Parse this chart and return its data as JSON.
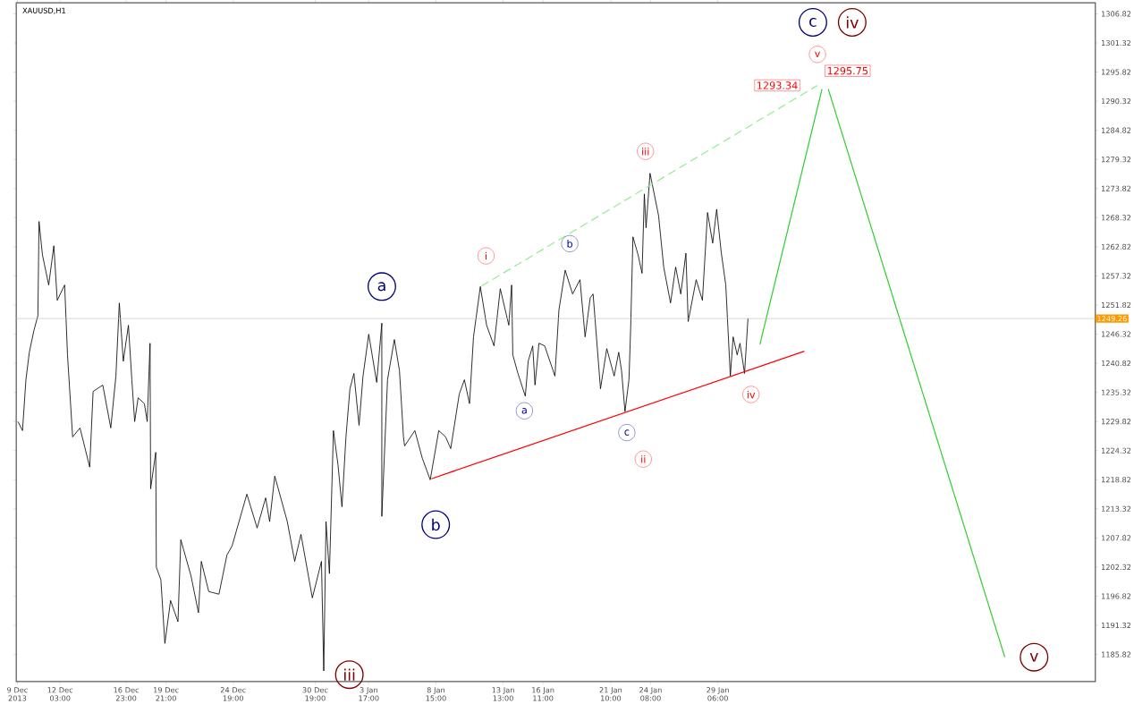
{
  "chart_data": {
    "type": "line",
    "title": "XAUUSD,H1",
    "xlim": [
      "2013-12-08T22:00",
      "2014-02-25T21:00"
    ],
    "ylim": [
      1180.7,
      1308.9
    ],
    "xticks": [
      {
        "value": "2013-12-09T00:00",
        "label": "9 Dec 2013"
      },
      {
        "value": "2013-12-12T03:00",
        "label": "12 Dec 03:00"
      },
      {
        "value": "2013-12-16T23:00",
        "label": "16 Dec 23:00"
      },
      {
        "value": "2013-12-19T21:00",
        "label": "19 Dec 21:00"
      },
      {
        "value": "2013-12-24T19:00",
        "label": "24 Dec 19:00"
      },
      {
        "value": "2013-12-30T19:00",
        "label": "30 Dec 19:00"
      },
      {
        "value": "2014-01-03T17:00",
        "label": "3 Jan 17:00"
      },
      {
        "value": "2014-01-08T15:00",
        "label": "8 Jan 15:00"
      },
      {
        "value": "2014-01-13T13:00",
        "label": "13 Jan 13:00"
      },
      {
        "value": "2014-01-16T11:00",
        "label": "16 Jan 11:00"
      },
      {
        "value": "2014-01-21T10:00",
        "label": "21 Jan 10:00"
      },
      {
        "value": "2014-01-24T08:00",
        "label": "24 Jan 08:00"
      },
      {
        "value": "2014-01-29T06:00",
        "label": "29 Jan 06:00"
      }
    ],
    "yticks": [
      1185.82,
      1191.32,
      1196.82,
      1202.32,
      1207.82,
      1213.32,
      1218.82,
      1224.32,
      1229.82,
      1235.32,
      1240.82,
      1246.32,
      1251.82,
      1257.32,
      1262.82,
      1268.32,
      1273.82,
      1279.32,
      1284.82,
      1290.32,
      1295.82,
      1301.32,
      1306.82
    ],
    "series": [
      {
        "color": "#000000",
        "x": [
          "2013-12-09T01:00",
          "2013-12-09T09:00",
          "2013-12-09T15:00",
          "2013-12-09T21:00",
          "2013-12-10T05:00",
          "2013-12-10T12:00",
          "2013-12-10T14:00",
          "2013-12-10T20:00",
          "2013-12-11T07:00",
          "2013-12-11T16:00",
          "2013-12-11T22:00",
          "2013-12-12T11:00",
          "2013-12-12T16:00",
          "2013-12-13T01:00",
          "2013-12-13T14:00",
          "2013-12-14T07:00",
          "2013-12-14T13:00",
          "2013-12-15T06:00",
          "2013-12-15T20:00",
          "2013-12-16T05:00",
          "2013-12-16T11:00",
          "2013-12-16T18:00",
          "2013-12-17T03:00",
          "2013-12-17T09:00",
          "2013-12-17T14:00",
          "2013-12-17T20:00",
          "2013-12-18T07:00",
          "2013-12-18T12:00",
          "2013-12-18T17:00",
          "2013-12-18T18:00",
          "2013-12-19T03:00",
          "2013-12-19T04:00",
          "2013-12-19T12:00",
          "2013-12-19T19:00",
          "2013-12-20T05:00",
          "2013-12-20T18:00",
          "2013-12-20T23:00",
          "2013-12-21T17:00",
          "2013-12-22T06:00",
          "2013-12-22T11:00",
          "2013-12-23T00:00",
          "2013-12-23T18:00",
          "2013-12-24T08:00",
          "2013-12-24T17:00",
          "2013-12-25T19:00",
          "2013-12-26T13:00",
          "2013-12-27T04:00",
          "2013-12-27T11:00",
          "2013-12-27T20:00",
          "2013-12-28T18:00",
          "2013-12-29T07:00",
          "2013-12-29T18:00",
          "2013-12-30T14:00",
          "2013-12-31T06:00",
          "2013-12-31T10:00",
          "2013-12-31T14:00",
          "2013-12-31T20:00",
          "2014-01-01T03:00",
          "2014-01-01T11:00",
          "2014-01-01T18:00",
          "2014-01-02T01:00",
          "2014-01-02T08:00",
          "2014-01-02T15:00",
          "2014-01-03T00:00",
          "2014-01-03T07:00",
          "2014-01-03T17:00",
          "2014-01-04T07:00",
          "2014-01-04T16:00",
          "2014-01-04T16:00",
          "2014-01-05T02:00",
          "2014-01-05T14:00",
          "2014-01-05T23:00",
          "2014-01-06T06:00",
          "2014-01-06T08:00",
          "2014-01-07T02:00",
          "2014-01-07T15:00",
          "2014-01-08T05:00",
          "2014-01-08T20:00",
          "2014-01-09T08:00",
          "2014-01-09T17:00",
          "2014-01-10T08:00",
          "2014-01-10T17:00",
          "2014-01-11T02:00",
          "2014-01-11T09:00",
          "2014-01-11T21:00",
          "2014-01-12T08:00",
          "2014-01-12T21:00",
          "2014-01-13T08:00",
          "2014-01-13T23:00",
          "2014-01-14T04:00",
          "2014-01-14T06:00",
          "2014-01-14T15:00",
          "2014-01-15T04:00",
          "2014-01-15T09:00",
          "2014-01-15T17:00",
          "2014-01-15T21:00",
          "2014-01-16T04:00",
          "2014-01-16T14:00",
          "2014-01-17T08:00",
          "2014-01-17T15:00",
          "2014-01-18T02:00",
          "2014-01-18T15:00",
          "2014-01-19T04:00",
          "2014-01-19T13:00",
          "2014-01-19T22:00",
          "2014-01-20T03:00",
          "2014-01-20T16:00",
          "2014-01-21T03:00",
          "2014-01-21T16:00",
          "2014-01-22T00:00",
          "2014-01-22T05:00",
          "2014-01-22T11:00",
          "2014-01-22T18:00",
          "2014-01-22T21:00",
          "2014-01-23T01:00",
          "2014-01-23T10:00",
          "2014-01-23T17:00",
          "2014-01-23T21:00",
          "2014-01-24T00:00",
          "2014-01-24T07:00",
          "2014-01-24T22:00",
          "2014-01-25T07:00",
          "2014-01-25T19:00",
          "2014-01-26T04:00",
          "2014-01-26T13:00",
          "2014-01-26T22:00",
          "2014-01-27T02:00",
          "2014-01-27T16:00",
          "2014-01-28T03:00",
          "2014-01-28T12:00",
          "2014-01-28T21:00",
          "2014-01-29T04:00",
          "2014-01-29T12:00",
          "2014-01-29T20:00",
          "2014-01-30T04:00",
          "2014-01-30T09:00",
          "2014-01-30T16:00",
          "2014-01-30T21:00",
          "2014-01-31T05:00",
          "2014-01-31T08:00",
          "2014-01-31T11:00"
        ],
        "values": [
          1229.8,
          1228.1,
          1237.7,
          1242.9,
          1247.0,
          1249.8,
          1267.6,
          1261.3,
          1255.6,
          1263.0,
          1252.7,
          1255.6,
          1242.4,
          1226.9,
          1228.6,
          1221.2,
          1235.5,
          1236.7,
          1228.6,
          1238.4,
          1252.2,
          1241.2,
          1248.0,
          1237.7,
          1229.8,
          1234.3,
          1233.2,
          1229.8,
          1244.6,
          1217.1,
          1224.0,
          1202.3,
          1199.9,
          1187.9,
          1196.0,
          1192.0,
          1207.5,
          1200.6,
          1193.7,
          1203.4,
          1197.7,
          1197.2,
          1204.6,
          1206.3,
          1216.1,
          1209.7,
          1215.4,
          1210.9,
          1219.5,
          1210.9,
          1203.4,
          1208.5,
          1196.5,
          1203.4,
          1182.7,
          1210.9,
          1201.1,
          1228.1,
          1221.7,
          1213.7,
          1226.9,
          1236.0,
          1238.9,
          1229.1,
          1238.4,
          1246.3,
          1237.2,
          1248.4,
          1211.9,
          1237.7,
          1245.3,
          1239.4,
          1226.9,
          1225.2,
          1228.1,
          1222.9,
          1218.8,
          1228.1,
          1226.9,
          1224.7,
          1235.0,
          1237.7,
          1233.2,
          1245.8,
          1255.3,
          1248.0,
          1244.1,
          1254.9,
          1248.0,
          1255.6,
          1242.4,
          1238.9,
          1234.6,
          1241.2,
          1244.1,
          1236.7,
          1244.6,
          1244.1,
          1238.4,
          1250.9,
          1258.4,
          1253.9,
          1256.6,
          1245.8,
          1253.2,
          1253.9,
          1236.0,
          1243.6,
          1238.4,
          1242.9,
          1239.4,
          1231.7,
          1237.7,
          1247.5,
          1264.7,
          1261.3,
          1257.8,
          1272.8,
          1266.4,
          1276.7,
          1268.7,
          1259.0,
          1252.2,
          1259.0,
          1253.9,
          1261.6,
          1248.7,
          1256.6,
          1252.7,
          1269.3,
          1263.5,
          1269.9,
          1261.8,
          1255.6,
          1238.4,
          1245.8,
          1242.4,
          1244.6,
          1238.9,
          1244.1,
          1249.3
        ]
      },
      {
        "color": "#90ee90",
        "line_style": "dashed",
        "x": [
          "2014-01-11T23:00",
          "2014-02-05T13:00"
        ],
        "values": [
          1255.4,
          1293.3
        ]
      },
      {
        "color": "#ff0000",
        "x": [
          "2014-01-08T07:00",
          "2014-02-04T14:00"
        ],
        "values": [
          1219.0,
          1243.1
        ]
      },
      {
        "color": "#32cd32",
        "x": [
          "2014-02-01T08:00",
          "2014-02-05T21:00"
        ],
        "values": [
          1244.4,
          1292.6
        ]
      },
      {
        "color": "#32cd32",
        "x": [
          "2014-02-06T08:00",
          "2014-02-19T06:00"
        ],
        "values": [
          1292.6,
          1185.3
        ]
      }
    ],
    "ref_lines": [
      {
        "axis": "y",
        "value": 1249.26,
        "label": "1249.26",
        "color": "#c0c0c0"
      }
    ],
    "annotations": [
      "1293.34",
      "1295.75",
      "a",
      "b",
      "c",
      "iv",
      "iii",
      "v",
      "i",
      "ii",
      "iii",
      "iv",
      "v",
      "a",
      "b",
      "c"
    ]
  }
}
